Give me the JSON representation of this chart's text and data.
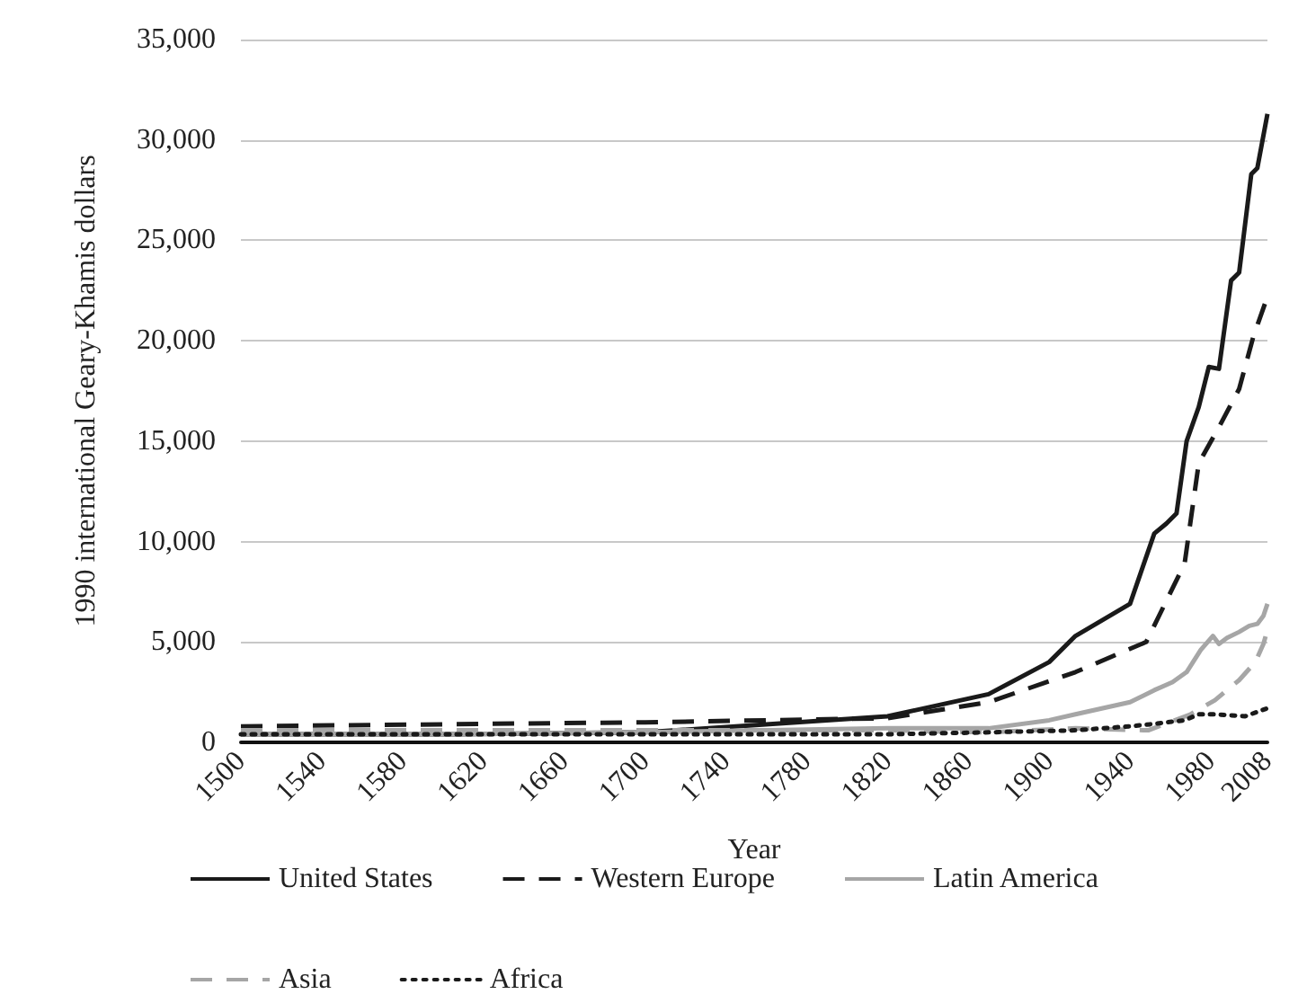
{
  "chart_data": {
    "type": "line",
    "xlabel": "Year",
    "ylabel": "1990 international Geary-Khamis dollars",
    "x": [
      1500,
      1600,
      1700,
      1820,
      1870,
      1900,
      1913,
      1940,
      1952,
      1958,
      1963,
      1968,
      1974,
      1979,
      1984,
      1990,
      1994,
      2000,
      2003,
      2008
    ],
    "xlim": [
      1500,
      2008
    ],
    "xticks": [
      1500,
      1540,
      1580,
      1620,
      1660,
      1700,
      1740,
      1780,
      1820,
      1860,
      1900,
      1940,
      1980,
      2008
    ],
    "ylim": [
      0,
      35000
    ],
    "yticks": [
      0,
      {
        "value": 5000,
        "label": "5,000"
      },
      {
        "value": 10000,
        "label": "10,000"
      },
      {
        "value": 15000,
        "label": "15,000"
      },
      {
        "value": 20000,
        "label": "20,000"
      },
      {
        "value": 25000,
        "label": "25,000"
      },
      {
        "value": 30000,
        "label": "30,000"
      },
      {
        "value": 35000,
        "label": "35,000"
      }
    ],
    "grid": "y",
    "legend": "bottom",
    "marker": "none",
    "series": [
      {
        "name": "United States",
        "color": "#1a1a1a",
        "line_style": "solid",
        "values": [
          400,
          400,
          500,
          1300,
          2400,
          4000,
          5300,
          6900,
          10400,
          10900,
          11400,
          15000,
          16700,
          18700,
          18600,
          23000,
          23400,
          28300,
          28600,
          31300
        ]
      },
      {
        "name": "Western Europe",
        "color": "#1a1a1a",
        "line_style": "dashed",
        "x": [
          1500,
          1600,
          1700,
          1820,
          1870,
          1913,
          1948,
          1967,
          1974,
          1984,
          1994,
          2001,
          2008
        ],
        "values": [
          800,
          900,
          1000,
          1200,
          2000,
          3500,
          5000,
          8900,
          13900,
          15700,
          17600,
          20200,
          22200
        ]
      },
      {
        "name": "Latin America",
        "color": "#a6a6a6",
        "line_style": "solid",
        "x": [
          1500,
          1600,
          1700,
          1820,
          1870,
          1900,
          1913,
          1940,
          1952,
          1961,
          1968,
          1975,
          1981,
          1984,
          1988,
          1994,
          1999,
          2003,
          2006,
          2008
        ],
        "values": [
          400,
          400,
          500,
          700,
          700,
          1100,
          1400,
          2000,
          2600,
          3000,
          3500,
          4600,
          5300,
          4900,
          5200,
          5500,
          5800,
          5900,
          6300,
          6900
        ]
      },
      {
        "name": "Asia",
        "color": "#a6a6a6",
        "line_style": "dashed",
        "x": [
          1500,
          1600,
          1700,
          1820,
          1870,
          1913,
          1949,
          1970,
          1982,
          1994,
          2002,
          2006,
          2008
        ],
        "values": [
          600,
          600,
          600,
          600,
          500,
          700,
          600,
          1400,
          2100,
          3100,
          4000,
          4900,
          5600
        ]
      },
      {
        "name": "Africa",
        "color": "#1a1a1a",
        "line_style": "dotted",
        "x": [
          1500,
          1600,
          1700,
          1820,
          1870,
          1913,
          1940,
          1950,
          1967,
          1974,
          1982,
          1997,
          2008
        ],
        "values": [
          400,
          400,
          400,
          400,
          500,
          600,
          800,
          900,
          1100,
          1400,
          1400,
          1300,
          1700
        ]
      }
    ]
  }
}
